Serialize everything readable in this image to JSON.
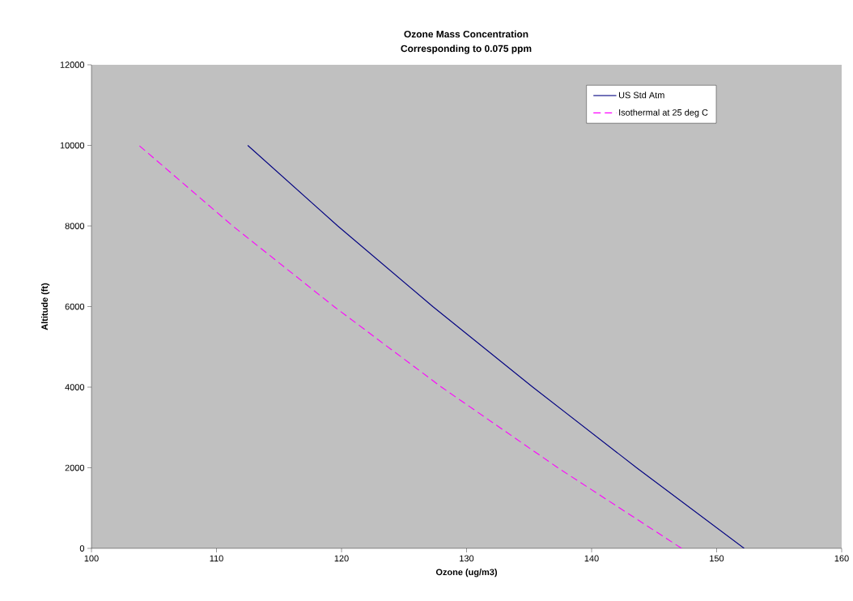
{
  "chart_data": {
    "type": "line",
    "title": "Ozone Mass Concentration",
    "subtitle": "Corresponding to 0.075 ppm",
    "xlabel": "Ozone (ug/m3)",
    "ylabel": "Altitude (ft)",
    "series": [
      {
        "name": "US Std Atm",
        "color": "#000080",
        "line_style": "solid",
        "x": [
          152.2,
          143.6,
          135.3,
          127.3,
          119.7,
          112.5
        ],
        "values": [
          0,
          2000,
          4000,
          6000,
          8000,
          10000
        ]
      },
      {
        "name": "Isothermal at 25 deg C",
        "color": "#ff00ff",
        "line_style": "dashed",
        "x": [
          147.2,
          137.3,
          128.0,
          119.4,
          111.3,
          103.8
        ],
        "values": [
          0,
          2000,
          4000,
          6000,
          8000,
          10000
        ]
      }
    ],
    "xlim": [
      100,
      160
    ],
    "xticks": [
      100,
      110,
      120,
      130,
      140,
      150,
      160
    ],
    "ylim": [
      0,
      12000
    ],
    "yticks": [
      0,
      2000,
      4000,
      6000,
      8000,
      10000,
      12000
    ],
    "grid": false,
    "legend": "top right",
    "marker": "none"
  }
}
